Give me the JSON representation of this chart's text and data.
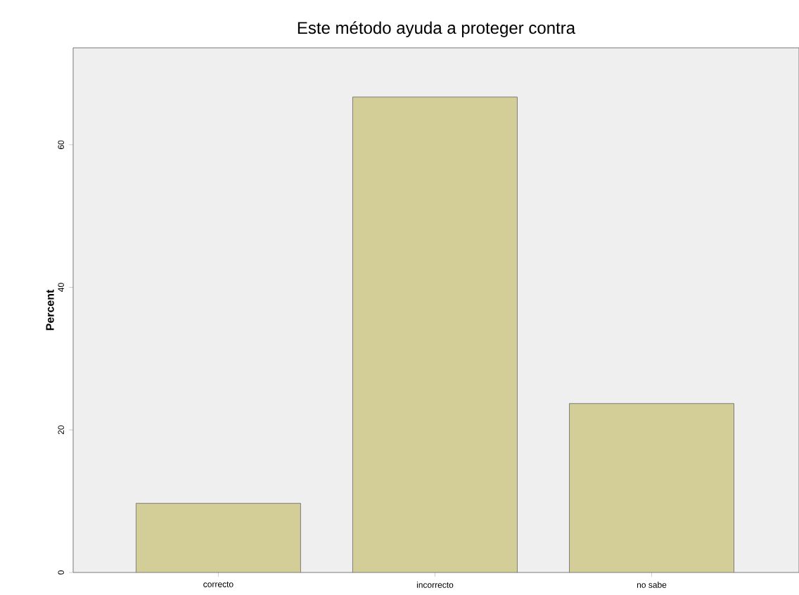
{
  "chart_data": {
    "type": "bar",
    "title": "Este método ayuda a proteger contra",
    "ylabel": "Percent",
    "categories": [
      "correcto",
      "incorrecto",
      "no sabe"
    ],
    "values": [
      9.7,
      66.7,
      23.7
    ],
    "color": "#d3ce98",
    "ylim": [
      0,
      73.6
    ],
    "yticks": [
      0,
      20,
      40,
      60
    ],
    "grid": false
  }
}
